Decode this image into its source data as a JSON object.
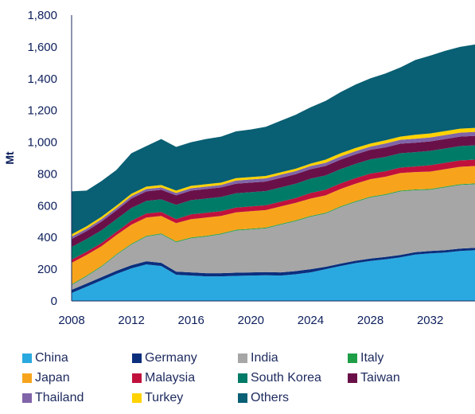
{
  "chart_data": {
    "type": "area",
    "stacked": true,
    "ylabel": "Mt",
    "ylim": [
      0,
      1800
    ],
    "yticks": [
      "0",
      "200",
      "400",
      "600",
      "800",
      "1,000",
      "1,200",
      "1,400",
      "1,600",
      "1,800"
    ],
    "ytick_values": [
      0,
      200,
      400,
      600,
      800,
      1000,
      1200,
      1400,
      1600,
      1800
    ],
    "xlim": [
      2008,
      2035
    ],
    "xticks": [
      "2008",
      "2012",
      "2016",
      "2020",
      "2024",
      "2028",
      "2032"
    ],
    "xtick_values": [
      2008,
      2012,
      2016,
      2020,
      2024,
      2028,
      2032
    ],
    "grid": false,
    "legend_position": "bottom",
    "x": [
      2008,
      2009,
      2010,
      2011,
      2012,
      2013,
      2014,
      2015,
      2016,
      2017,
      2018,
      2019,
      2020,
      2021,
      2022,
      2023,
      2024,
      2025,
      2026,
      2027,
      2028,
      2029,
      2030,
      2031,
      2032,
      2033,
      2034,
      2035
    ],
    "series": [
      {
        "name": "China",
        "color": "#2aa9e0",
        "values": [
          50,
          90,
          130,
          170,
          205,
          230,
          220,
          165,
          160,
          155,
          155,
          158,
          160,
          162,
          160,
          168,
          180,
          200,
          220,
          238,
          252,
          262,
          275,
          292,
          300,
          305,
          315,
          320
        ]
      },
      {
        "name": "Germany",
        "color": "#0b2f7d",
        "values": [
          20,
          20,
          20,
          20,
          20,
          20,
          20,
          20,
          20,
          20,
          20,
          20,
          20,
          20,
          20,
          20,
          20,
          15,
          15,
          15,
          15,
          15,
          15,
          15,
          15,
          15,
          15,
          15
        ]
      },
      {
        "name": "India",
        "color": "#a6a6a6",
        "values": [
          30,
          45,
          65,
          100,
          130,
          155,
          180,
          185,
          215,
          230,
          245,
          265,
          270,
          275,
          300,
          315,
          330,
          335,
          355,
          370,
          385,
          390,
          400,
          390,
          385,
          395,
          400,
          400
        ]
      },
      {
        "name": "Italy",
        "color": "#1f9e48",
        "values": [
          5,
          5,
          5,
          5,
          5,
          5,
          5,
          5,
          5,
          5,
          5,
          5,
          5,
          5,
          5,
          5,
          5,
          5,
          5,
          5,
          5,
          5,
          5,
          5,
          5,
          5,
          5,
          5
        ]
      },
      {
        "name": "Japan",
        "color": "#f7a41c",
        "values": [
          135,
          130,
          125,
          120,
          120,
          115,
          110,
          115,
          115,
          115,
          110,
          110,
          110,
          110,
          110,
          110,
          110,
          110,
          110,
          110,
          110,
          110,
          110,
          110,
          110,
          110,
          110,
          110
        ]
      },
      {
        "name": "Malaysia",
        "color": "#c0113d",
        "values": [
          20,
          20,
          20,
          20,
          25,
          25,
          25,
          25,
          30,
          30,
          30,
          30,
          30,
          30,
          30,
          30,
          35,
          35,
          35,
          35,
          35,
          35,
          35,
          35,
          40,
          40,
          40,
          40
        ]
      },
      {
        "name": "South Korea",
        "color": "#007b67",
        "values": [
          80,
          80,
          80,
          80,
          80,
          80,
          80,
          90,
          90,
          90,
          90,
          90,
          90,
          90,
          90,
          90,
          90,
          90,
          90,
          90,
          90,
          90,
          90,
          90,
          90,
          90,
          90,
          90
        ]
      },
      {
        "name": "Taiwan",
        "color": "#6a1048",
        "values": [
          50,
          50,
          55,
          55,
          60,
          60,
          60,
          60,
          60,
          60,
          60,
          60,
          60,
          60,
          60,
          60,
          60,
          60,
          60,
          60,
          60,
          60,
          60,
          60,
          60,
          60,
          60,
          60
        ]
      },
      {
        "name": "Thailand",
        "color": "#8064a8",
        "values": [
          15,
          15,
          15,
          15,
          15,
          15,
          15,
          15,
          15,
          15,
          15,
          20,
          20,
          20,
          20,
          20,
          20,
          20,
          20,
          20,
          20,
          25,
          25,
          25,
          25,
          25,
          25,
          25
        ]
      },
      {
        "name": "Turkey",
        "color": "#ffd200",
        "values": [
          15,
          15,
          15,
          15,
          15,
          15,
          15,
          15,
          15,
          15,
          15,
          15,
          15,
          15,
          15,
          15,
          15,
          20,
          20,
          20,
          20,
          20,
          20,
          25,
          25,
          25,
          25,
          25
        ]
      },
      {
        "name": "Others",
        "color": "#095f73",
        "values": [
          270,
          225,
          225,
          225,
          255,
          255,
          290,
          275,
          275,
          285,
          290,
          295,
          300,
          310,
          325,
          340,
          355,
          370,
          385,
          400,
          410,
          420,
          435,
          470,
          490,
          505,
          515,
          525
        ]
      }
    ]
  }
}
